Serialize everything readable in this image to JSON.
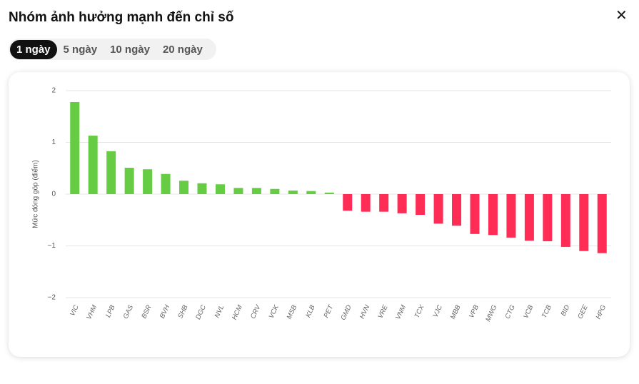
{
  "header": {
    "title": "Nhóm ảnh hưởng mạnh đến chỉ số",
    "close_label": "✕"
  },
  "tabs": {
    "items": [
      "1 ngày",
      "5 ngày",
      "10 ngày",
      "20 ngày"
    ],
    "active": 0
  },
  "chart_data": {
    "type": "bar",
    "y_label": "Mức đóng góp (điểm)",
    "categories": [
      "VIC",
      "VHM",
      "LPB",
      "GAS",
      "BSR",
      "BVH",
      "SHB",
      "DGC",
      "NVL",
      "HCM",
      "CRV",
      "VCK",
      "MSB",
      "KLB",
      "PET",
      "GMD",
      "HVN",
      "VRE",
      "VNM",
      "TCX",
      "VJC",
      "MBB",
      "VPB",
      "MWG",
      "CTG",
      "VCB",
      "TCB",
      "BID",
      "GEE",
      "HPG"
    ],
    "values": [
      1.78,
      1.13,
      0.83,
      0.51,
      0.48,
      0.39,
      0.26,
      0.21,
      0.19,
      0.12,
      0.12,
      0.1,
      0.07,
      0.06,
      0.03,
      -0.32,
      -0.34,
      -0.34,
      -0.37,
      -0.4,
      -0.57,
      -0.61,
      -0.77,
      -0.79,
      -0.84,
      -0.9,
      -0.91,
      -1.02,
      -1.1,
      -1.14
    ],
    "positive_color": "#66cc44",
    "negative_color": "#ff2d55",
    "ylim": [
      -2,
      2
    ],
    "yticks": [
      {
        "value": -2,
        "label": "−2"
      },
      {
        "value": -1,
        "label": "−1"
      },
      0,
      1,
      2
    ],
    "grid": true
  }
}
